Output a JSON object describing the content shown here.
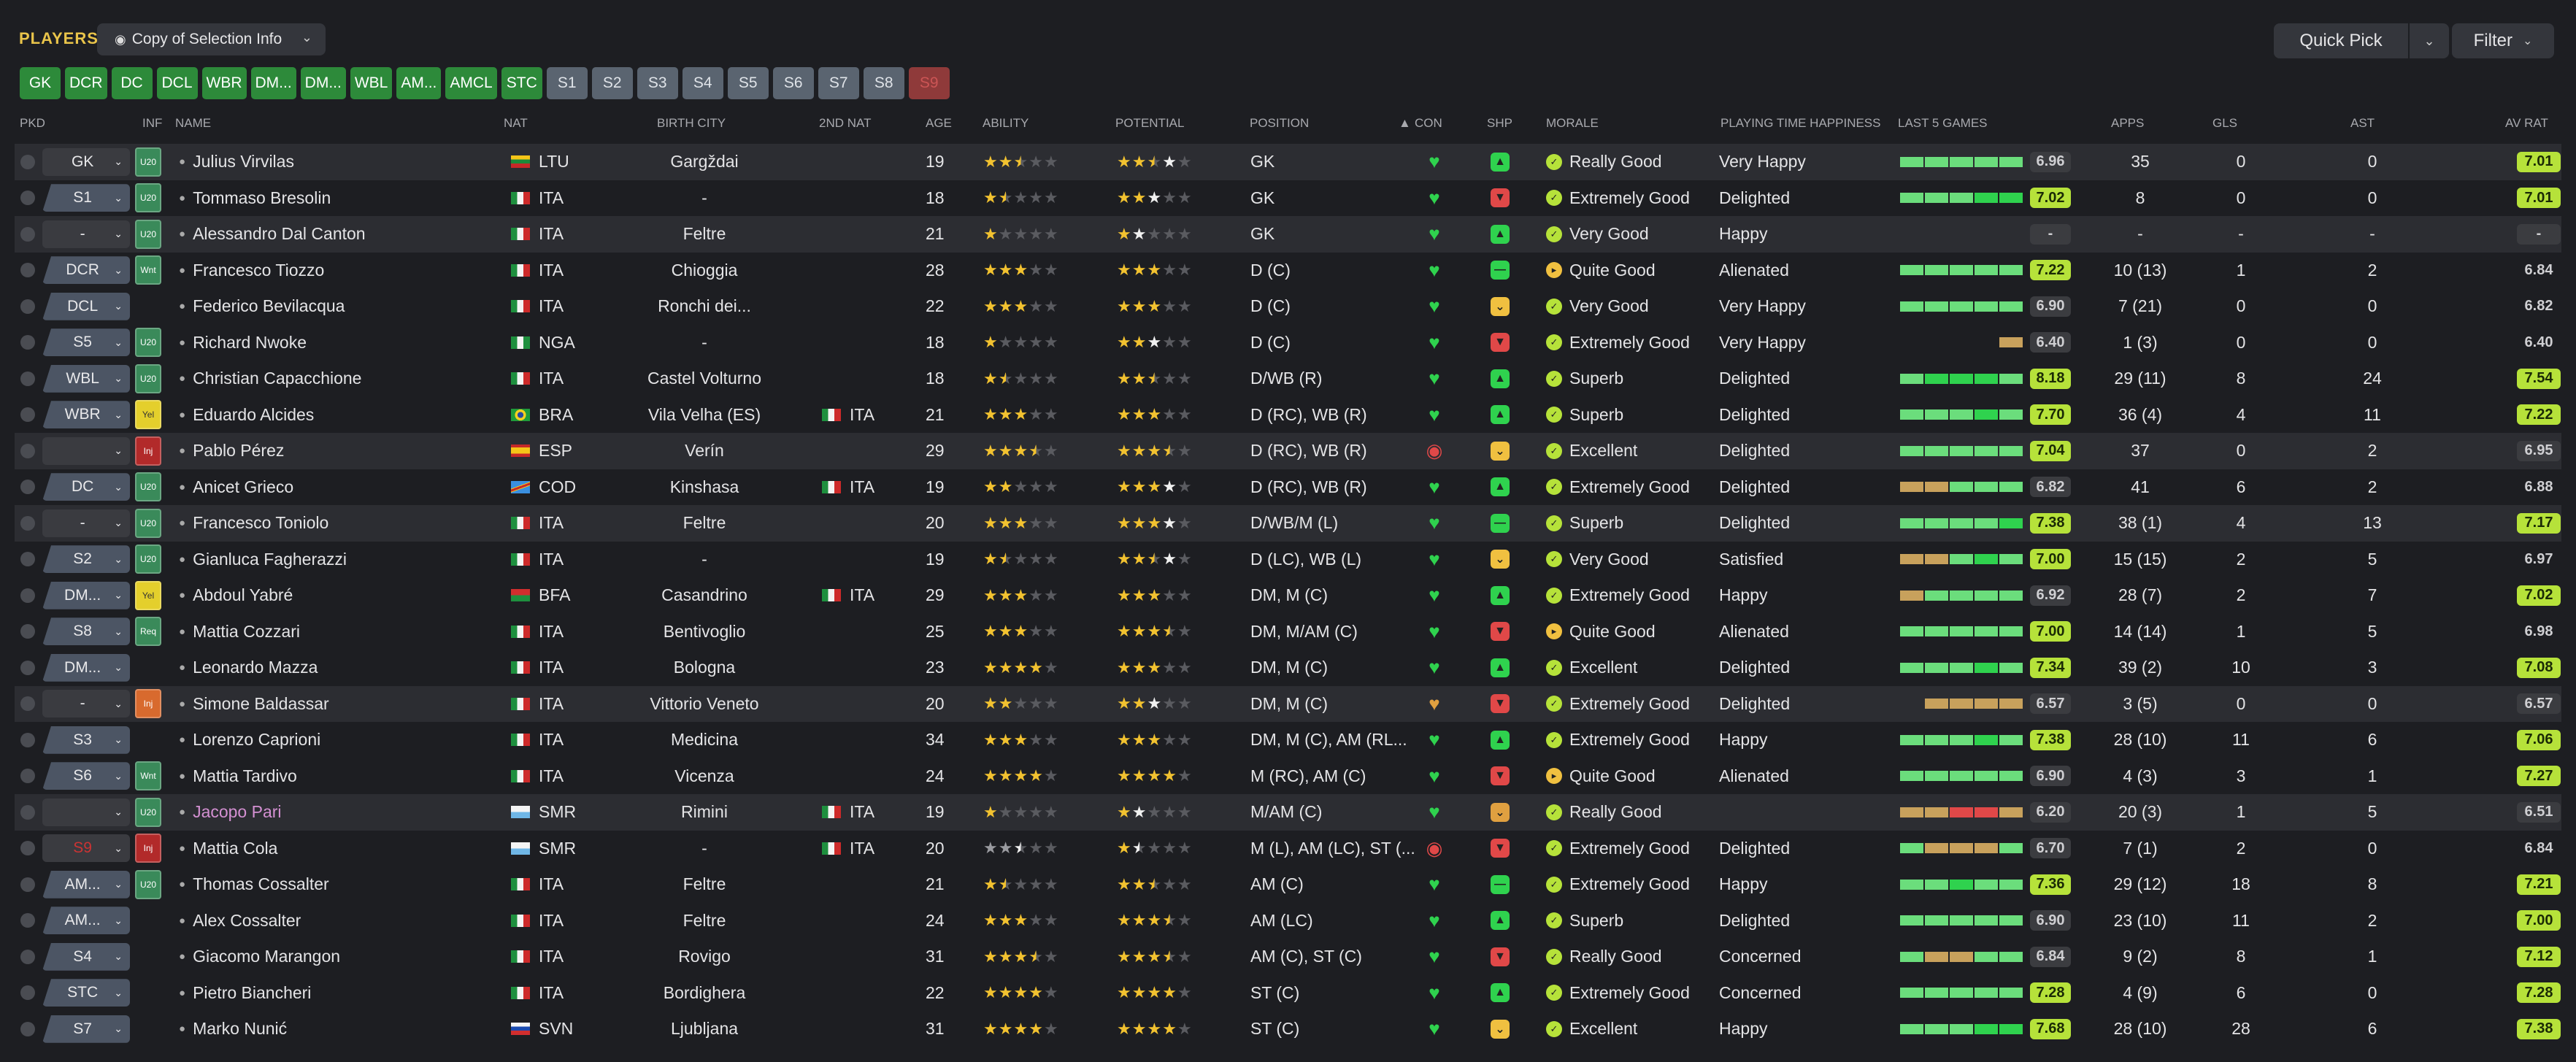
{
  "header": {
    "title": "PLAYERS",
    "view_label": "Copy of Selection Info",
    "quick_pick_label": "Quick Pick",
    "filter_label": "Filter"
  },
  "chips": [
    {
      "label": "GK",
      "style": "g"
    },
    {
      "label": "DCR",
      "style": "g"
    },
    {
      "label": "DC",
      "style": "g"
    },
    {
      "label": "DCL",
      "style": "g"
    },
    {
      "label": "WBR",
      "style": "g"
    },
    {
      "label": "DM...",
      "style": "g"
    },
    {
      "label": "DM...",
      "style": "g"
    },
    {
      "label": "WBL",
      "style": "g"
    },
    {
      "label": "AM...",
      "style": "g"
    },
    {
      "label": "AMCL",
      "style": "g"
    },
    {
      "label": "STC",
      "style": "g"
    },
    {
      "label": "S1",
      "style": "s"
    },
    {
      "label": "S2",
      "style": "s"
    },
    {
      "label": "S3",
      "style": "s"
    },
    {
      "label": "S4",
      "style": "s"
    },
    {
      "label": "S5",
      "style": "s"
    },
    {
      "label": "S6",
      "style": "s"
    },
    {
      "label": "S7",
      "style": "s"
    },
    {
      "label": "S8",
      "style": "s"
    },
    {
      "label": "S9",
      "style": "r"
    }
  ],
  "columns": {
    "pkd": "PKD",
    "inf": "INF",
    "name": "NAME",
    "nat": "NAT",
    "birth_city": "BIRTH CITY",
    "nat2": "2ND NAT",
    "age": "AGE",
    "ability": "ABILITY",
    "potential": "POTENTIAL",
    "position": "POSITION",
    "con": "CON",
    "shp": "SHP",
    "morale": "MORALE",
    "pth": "PLAYING TIME HAPPINESS",
    "last5": "LAST 5 GAMES",
    "apps": "APPS",
    "gls": "GLS",
    "ast": "AST",
    "avrat": "AV RAT"
  },
  "colors": {
    "green": "#2fd24e",
    "green_light": "#6bdd7c",
    "lime": "#b6e23a",
    "orange": "#e0a040",
    "red": "#e04848",
    "tan": "#c8a15c",
    "grey": "#7d7f85"
  },
  "rows": [
    {
      "pkd": "GK",
      "pkd_style": "grey",
      "inf": "U20",
      "inf_style": "u20",
      "name": "Julius Virvilas",
      "flag": "ltu",
      "nat": "LTU",
      "city": "Gargždai",
      "nat2": "",
      "age": "19",
      "ab": "ffhee",
      "po": "ffhwe",
      "pos": "GK",
      "con": "g",
      "shp": "g",
      "morale": "Really Good",
      "mor": "g",
      "pth": "Very Happy",
      "l5": [
        "g",
        "g",
        "g",
        "g",
        "g"
      ],
      "l5r": "6.96",
      "l5c": "grey",
      "apps": "35",
      "gls": "0",
      "ast": "0",
      "avr": "7.01",
      "avc": "lime",
      "hl": true
    },
    {
      "pkd": "S1",
      "pkd_style": "blue",
      "inf": "U20",
      "inf_style": "u20",
      "name": "Tommaso Bresolin",
      "flag": "ita",
      "nat": "ITA",
      "city": "-",
      "nat2": "",
      "age": "18",
      "ab": "fheee",
      "po": "ffwee",
      "pos": "GK",
      "con": "g",
      "shp": "r",
      "morale": "Extremely Good",
      "mor": "g",
      "pth": "Delighted",
      "l5": [
        "g",
        "g",
        "g",
        "G",
        "G"
      ],
      "l5r": "7.02",
      "l5c": "lime",
      "apps": "8",
      "gls": "0",
      "ast": "0",
      "avr": "7.01",
      "avc": "lime",
      "hl": false
    },
    {
      "pkd": "-",
      "pkd_style": "grey",
      "inf": "U20",
      "inf_style": "u20",
      "name": "Alessandro Dal Canton",
      "flag": "ita",
      "nat": "ITA",
      "city": "Feltre",
      "nat2": "",
      "age": "21",
      "ab": "feeee",
      "po": "fweee",
      "pos": "GK",
      "con": "g",
      "shp": "g",
      "morale": "Very Good",
      "mor": "g",
      "pth": "Happy",
      "l5": [],
      "l5r": "-",
      "l5c": "grey",
      "apps": "-",
      "gls": "-",
      "ast": "-",
      "avr": "-",
      "avc": "grey",
      "hl": true
    },
    {
      "pkd": "DCR",
      "pkd_style": "blue",
      "inf": "Wnt",
      "inf_style": "wnt",
      "name": "Francesco Tiozzo",
      "flag": "ita",
      "nat": "ITA",
      "city": "Chioggia",
      "nat2": "",
      "age": "28",
      "ab": "fffee",
      "po": "fffee",
      "pos": "D (C)",
      "con": "g",
      "shp": "n",
      "morale": "Quite Good",
      "mor": "y",
      "pth": "Alienated",
      "l5": [
        "g",
        "g",
        "g",
        "g",
        "g"
      ],
      "l5r": "7.22",
      "l5c": "lime",
      "apps": "10 (13)",
      "gls": "1",
      "ast": "2",
      "avr": "6.84",
      "avc": "none",
      "hl": false
    },
    {
      "pkd": "DCL",
      "pkd_style": "blue",
      "inf": "",
      "inf_style": "",
      "name": "Federico Bevilacqua",
      "flag": "ita",
      "nat": "ITA",
      "city": "Ronchi dei...",
      "nat2": "",
      "age": "22",
      "ab": "fffee",
      "po": "fffee",
      "pos": "D (C)",
      "con": "g",
      "shp": "y",
      "morale": "Very Good",
      "mor": "g",
      "pth": "Very Happy",
      "l5": [
        "g",
        "g",
        "g",
        "g",
        "g"
      ],
      "l5r": "6.90",
      "l5c": "grey",
      "apps": "7 (21)",
      "gls": "0",
      "ast": "0",
      "avr": "6.82",
      "avc": "none",
      "hl": false
    },
    {
      "pkd": "S5",
      "pkd_style": "blue",
      "inf": "U20",
      "inf_style": "u20",
      "name": "Richard Nwoke",
      "flag": "nga",
      "nat": "NGA",
      "city": "-",
      "nat2": "",
      "age": "18",
      "ab": "feeee",
      "po": "ffwee",
      "pos": "D (C)",
      "con": "g",
      "shp": "r",
      "morale": "Extremely Good",
      "mor": "g",
      "pth": "Very Happy",
      "l5": [
        "",
        "",
        "",
        "",
        "t"
      ],
      "l5r": "6.40",
      "l5c": "grey",
      "apps": "1 (3)",
      "gls": "0",
      "ast": "0",
      "avr": "6.40",
      "avc": "none",
      "hl": false
    },
    {
      "pkd": "WBL",
      "pkd_style": "blue",
      "inf": "U20",
      "inf_style": "u20",
      "name": "Christian Capacchione",
      "flag": "ita",
      "nat": "ITA",
      "city": "Castel Volturno",
      "nat2": "",
      "age": "18",
      "ab": "fheee",
      "po": "ffhee",
      "pos": "D/WB (R)",
      "con": "g",
      "shp": "g",
      "morale": "Superb",
      "mor": "g",
      "pth": "Delighted",
      "l5": [
        "g",
        "G",
        "G",
        "G",
        "g"
      ],
      "l5r": "8.18",
      "l5c": "lime",
      "apps": "29 (11)",
      "gls": "8",
      "ast": "24",
      "avr": "7.54",
      "avc": "lime",
      "hl": false
    },
    {
      "pkd": "WBR",
      "pkd_style": "blue",
      "inf": "Yel",
      "inf_style": "yel",
      "name": "Eduardo Alcides",
      "flag": "bra",
      "nat": "BRA",
      "city": "Vila Velha (ES)",
      "nat2": "ITA",
      "age": "21",
      "ab": "fffee",
      "po": "fffee",
      "pos": "D (RC), WB (R)",
      "con": "g",
      "shp": "g",
      "morale": "Superb",
      "mor": "g",
      "pth": "Delighted",
      "l5": [
        "g",
        "g",
        "g",
        "G",
        "g"
      ],
      "l5r": "7.70",
      "l5c": "lime",
      "apps": "36 (4)",
      "gls": "4",
      "ast": "11",
      "avr": "7.22",
      "avc": "lime",
      "hl": false
    },
    {
      "pkd": "",
      "pkd_style": "grey",
      "inf": "Inj",
      "inf_style": "inj",
      "name": "Pablo Pérez",
      "flag": "esp",
      "nat": "ESP",
      "city": "Verín",
      "nat2": "",
      "age": "29",
      "ab": "fffhe",
      "po": "fffhe",
      "pos": "D (RC), WB (R)",
      "con": "r",
      "shp": "y",
      "morale": "Excellent",
      "mor": "g",
      "pth": "Delighted",
      "l5": [
        "g",
        "g",
        "g",
        "g",
        "g"
      ],
      "l5r": "7.04",
      "l5c": "lime",
      "apps": "37",
      "gls": "0",
      "ast": "2",
      "avr": "6.95",
      "avc": "grey",
      "hl": true
    },
    {
      "pkd": "DC",
      "pkd_style": "blue",
      "inf": "U20",
      "inf_style": "u20",
      "name": "Anicet Grieco",
      "flag": "cod",
      "nat": "COD",
      "city": "Kinshasa",
      "nat2": "ITA",
      "age": "19",
      "ab": "ffeee",
      "po": "fffwe",
      "pos": "D (RC), WB (R)",
      "con": "g",
      "shp": "g",
      "morale": "Extremely Good",
      "mor": "g",
      "pth": "Delighted",
      "l5": [
        "t",
        "t",
        "g",
        "g",
        "g"
      ],
      "l5r": "6.82",
      "l5c": "grey",
      "apps": "41",
      "gls": "6",
      "ast": "2",
      "avr": "6.88",
      "avc": "none",
      "hl": false
    },
    {
      "pkd": "-",
      "pkd_style": "grey",
      "inf": "U20",
      "inf_style": "u20",
      "name": "Francesco Toniolo",
      "flag": "ita",
      "nat": "ITA",
      "city": "Feltre",
      "nat2": "",
      "age": "20",
      "ab": "fffee",
      "po": "fffwe",
      "pos": "D/WB/M (L)",
      "con": "g",
      "shp": "n",
      "morale": "Superb",
      "mor": "g",
      "pth": "Delighted",
      "l5": [
        "g",
        "g",
        "g",
        "g",
        "G"
      ],
      "l5r": "7.38",
      "l5c": "lime",
      "apps": "38 (1)",
      "gls": "4",
      "ast": "13",
      "avr": "7.17",
      "avc": "lime",
      "hl": true
    },
    {
      "pkd": "S2",
      "pkd_style": "blue",
      "inf": "U20",
      "inf_style": "u20",
      "name": "Gianluca Fagherazzi",
      "flag": "ita",
      "nat": "ITA",
      "city": "-",
      "nat2": "",
      "age": "19",
      "ab": "fheee",
      "po": "ffhwe",
      "pos": "D (LC), WB (L)",
      "con": "g",
      "shp": "y",
      "morale": "Very Good",
      "mor": "g",
      "pth": "Satisfied",
      "l5": [
        "t",
        "t",
        "g",
        "G",
        "g"
      ],
      "l5r": "7.00",
      "l5c": "lime",
      "apps": "15 (15)",
      "gls": "2",
      "ast": "5",
      "avr": "6.97",
      "avc": "none",
      "hl": false
    },
    {
      "pkd": "DM...",
      "pkd_style": "blue",
      "inf": "Yel",
      "inf_style": "yel",
      "name": "Abdoul Yabré",
      "flag": "bfa",
      "nat": "BFA",
      "city": "Casandrino",
      "nat2": "ITA",
      "age": "29",
      "ab": "fffee",
      "po": "fffee",
      "pos": "DM, M (C)",
      "con": "g",
      "shp": "g",
      "morale": "Extremely Good",
      "mor": "g",
      "pth": "Happy",
      "l5": [
        "t",
        "g",
        "g",
        "g",
        "g"
      ],
      "l5r": "6.92",
      "l5c": "grey",
      "apps": "28 (7)",
      "gls": "2",
      "ast": "7",
      "avr": "7.02",
      "avc": "lime",
      "hl": false
    },
    {
      "pkd": "S8",
      "pkd_style": "blue",
      "inf": "Req",
      "inf_style": "req",
      "name": "Mattia Cozzari",
      "flag": "ita",
      "nat": "ITA",
      "city": "Bentivoglio",
      "nat2": "",
      "age": "25",
      "ab": "fffee",
      "po": "fffhe",
      "pos": "DM, M/AM (C)",
      "con": "g",
      "shp": "r",
      "morale": "Quite Good",
      "mor": "y",
      "pth": "Alienated",
      "l5": [
        "g",
        "g",
        "g",
        "g",
        "g"
      ],
      "l5r": "7.00",
      "l5c": "lime",
      "apps": "14 (14)",
      "gls": "1",
      "ast": "5",
      "avr": "6.98",
      "avc": "none",
      "hl": false
    },
    {
      "pkd": "DM...",
      "pkd_style": "blue",
      "inf": "",
      "inf_style": "",
      "name": "Leonardo Mazza",
      "flag": "ita",
      "nat": "ITA",
      "city": "Bologna",
      "nat2": "",
      "age": "23",
      "ab": "ffffe",
      "po": "fffee",
      "pos": "DM, M (C)",
      "con": "g",
      "shp": "g",
      "morale": "Excellent",
      "mor": "g",
      "pth": "Delighted",
      "l5": [
        "g",
        "g",
        "g",
        "G",
        "g"
      ],
      "l5r": "7.34",
      "l5c": "lime",
      "apps": "39 (2)",
      "gls": "10",
      "ast": "3",
      "avr": "7.08",
      "avc": "lime",
      "hl": false
    },
    {
      "pkd": "-",
      "pkd_style": "grey",
      "inf": "Inj",
      "inf_style": "inj2",
      "name": "Simone Baldassar",
      "flag": "ita",
      "nat": "ITA",
      "city": "Vittorio Veneto",
      "nat2": "",
      "age": "20",
      "ab": "ffeee",
      "po": "ffwee",
      "pos": "DM, M (C)",
      "con": "o",
      "shp": "r",
      "morale": "Extremely Good",
      "mor": "g",
      "pth": "Delighted",
      "l5": [
        "",
        "t",
        "t",
        "t",
        "t"
      ],
      "l5r": "6.57",
      "l5c": "grey",
      "apps": "3 (5)",
      "gls": "0",
      "ast": "0",
      "avr": "6.57",
      "avc": "grey",
      "hl": true
    },
    {
      "pkd": "S3",
      "pkd_style": "blue",
      "inf": "",
      "inf_style": "",
      "name": "Lorenzo Caprioni",
      "flag": "ita",
      "nat": "ITA",
      "city": "Medicina",
      "nat2": "",
      "age": "34",
      "ab": "fffee",
      "po": "fffee",
      "pos": "DM, M (C), AM (RL...",
      "con": "g",
      "shp": "g",
      "morale": "Extremely Good",
      "mor": "g",
      "pth": "Happy",
      "l5": [
        "g",
        "g",
        "g",
        "G",
        "g"
      ],
      "l5r": "7.38",
      "l5c": "lime",
      "apps": "28 (10)",
      "gls": "11",
      "ast": "6",
      "avr": "7.06",
      "avc": "lime",
      "hl": false
    },
    {
      "pkd": "S6",
      "pkd_style": "blue",
      "inf": "Wnt",
      "inf_style": "wnt",
      "name": "Mattia Tardivo",
      "flag": "ita",
      "nat": "ITA",
      "city": "Vicenza",
      "nat2": "",
      "age": "24",
      "ab": "ffffe",
      "po": "ffffe",
      "pos": "M (RC), AM (C)",
      "con": "g",
      "shp": "r",
      "morale": "Quite Good",
      "mor": "y",
      "pth": "Alienated",
      "l5": [
        "g",
        "g",
        "g",
        "g",
        "g"
      ],
      "l5r": "6.90",
      "l5c": "grey",
      "apps": "4 (3)",
      "gls": "3",
      "ast": "1",
      "avr": "7.27",
      "avc": "lime",
      "hl": false
    },
    {
      "pkd": "",
      "pkd_style": "grey",
      "inf": "U20",
      "inf_style": "u20",
      "name": "Jacopo Pari",
      "name_style": "pink",
      "flag": "smr",
      "nat": "SMR",
      "city": "Rimini",
      "nat2": "ITA",
      "age": "19",
      "ab": "feeee",
      "po": "fweee",
      "pos": "M/AM (C)",
      "con": "g",
      "shp": "o",
      "morale": "Really Good",
      "mor": "g",
      "pth": "",
      "l5": [
        "t",
        "t",
        "r",
        "r",
        "t"
      ],
      "l5r": "6.20",
      "l5c": "grey",
      "apps": "20 (3)",
      "gls": "1",
      "ast": "5",
      "avr": "6.51",
      "avc": "grey",
      "hl": true
    },
    {
      "pkd": "S9",
      "pkd_style": "grey",
      "inf": "Inj",
      "inf_style": "inj",
      "name": "Mattia Cola",
      "flag": "smr",
      "nat": "SMR",
      "city": "-",
      "nat2": "ITA",
      "age": "20",
      "ab": "ggdee",
      "po": "fdeee",
      "pos": "M (L), AM (LC), ST (...",
      "con": "r",
      "shp": "r",
      "morale": "Extremely Good",
      "mor": "g",
      "pth": "Delighted",
      "l5": [
        "g",
        "t",
        "t",
        "t",
        "g"
      ],
      "l5r": "6.70",
      "l5c": "grey",
      "apps": "7 (1)",
      "gls": "2",
      "ast": "0",
      "avr": "6.84",
      "avc": "none",
      "hl": false
    },
    {
      "pkd": "AM...",
      "pkd_style": "blue",
      "inf": "U20",
      "inf_style": "u20",
      "name": "Thomas Cossalter",
      "flag": "ita",
      "nat": "ITA",
      "city": "Feltre",
      "nat2": "",
      "age": "21",
      "ab": "fheee",
      "po": "ffhee",
      "pos": "AM (C)",
      "con": "g",
      "shp": "n",
      "morale": "Extremely Good",
      "mor": "g",
      "pth": "Happy",
      "l5": [
        "g",
        "g",
        "G",
        "g",
        "g"
      ],
      "l5r": "7.36",
      "l5c": "lime",
      "apps": "29 (12)",
      "gls": "18",
      "ast": "8",
      "avr": "7.21",
      "avc": "lime",
      "hl": false
    },
    {
      "pkd": "AM...",
      "pkd_style": "blue",
      "inf": "",
      "inf_style": "",
      "name": "Alex Cossalter",
      "flag": "ita",
      "nat": "ITA",
      "city": "Feltre",
      "nat2": "",
      "age": "24",
      "ab": "fffee",
      "po": "fffhe",
      "pos": "AM (LC)",
      "con": "g",
      "shp": "g",
      "morale": "Superb",
      "mor": "g",
      "pth": "Delighted",
      "l5": [
        "g",
        "g",
        "g",
        "g",
        "g"
      ],
      "l5r": "6.90",
      "l5c": "grey",
      "apps": "23 (10)",
      "gls": "11",
      "ast": "2",
      "avr": "7.00",
      "avc": "lime",
      "hl": false
    },
    {
      "pkd": "S4",
      "pkd_style": "blue",
      "inf": "",
      "inf_style": "",
      "name": "Giacomo Marangon",
      "flag": "ita",
      "nat": "ITA",
      "city": "Rovigo",
      "nat2": "",
      "age": "31",
      "ab": "fffhe",
      "po": "fffhe",
      "pos": "AM (C), ST (C)",
      "con": "g",
      "shp": "r",
      "morale": "Really Good",
      "mor": "g",
      "pth": "Concerned",
      "l5": [
        "g",
        "t",
        "t",
        "g",
        "g"
      ],
      "l5r": "6.84",
      "l5c": "grey",
      "apps": "9 (2)",
      "gls": "8",
      "ast": "1",
      "avr": "7.12",
      "avc": "lime",
      "hl": false
    },
    {
      "pkd": "STC",
      "pkd_style": "blue",
      "inf": "",
      "inf_style": "",
      "name": "Pietro Biancheri",
      "flag": "ita",
      "nat": "ITA",
      "city": "Bordighera",
      "nat2": "",
      "age": "22",
      "ab": "ffffe",
      "po": "ffffe",
      "pos": "ST (C)",
      "con": "g",
      "shp": "g",
      "morale": "Extremely Good",
      "mor": "g",
      "pth": "Concerned",
      "l5": [
        "g",
        "g",
        "g",
        "g",
        "g"
      ],
      "l5r": "7.28",
      "l5c": "lime",
      "apps": "4 (9)",
      "gls": "6",
      "ast": "0",
      "avr": "7.28",
      "avc": "lime",
      "hl": false
    },
    {
      "pkd": "S7",
      "pkd_style": "blue",
      "inf": "",
      "inf_style": "",
      "name": "Marko Nunić",
      "flag": "svn",
      "nat": "SVN",
      "city": "Ljubljana",
      "nat2": "",
      "age": "31",
      "ab": "ffffe",
      "po": "ffffe",
      "pos": "ST (C)",
      "con": "g",
      "shp": "y",
      "morale": "Excellent",
      "mor": "g",
      "pth": "Happy",
      "l5": [
        "g",
        "g",
        "g",
        "G",
        "G"
      ],
      "l5r": "7.68",
      "l5c": "lime",
      "apps": "28 (10)",
      "gls": "28",
      "ast": "6",
      "avr": "7.38",
      "avc": "lime",
      "hl": false
    }
  ]
}
